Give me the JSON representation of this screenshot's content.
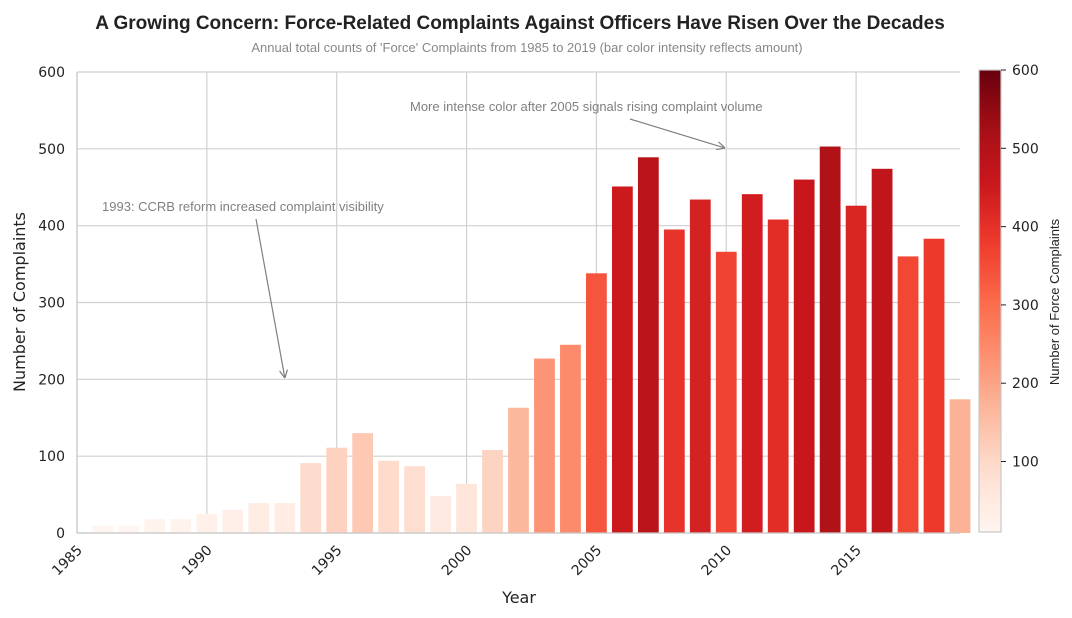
{
  "chart_data": {
    "type": "bar",
    "title": "A Growing Concern: Force-Related Complaints Against Officers Have Risen Over the Decades",
    "subtitle": "Annual total counts of 'Force' Complaints from 1985 to 2019 (bar color intensity reflects amount)",
    "xlabel": "Year",
    "ylabel": "Number of Complaints",
    "ylim": [
      0,
      600
    ],
    "xlim": [
      1985,
      2019
    ],
    "yticks": [
      "0",
      "100",
      "200",
      "300",
      "400",
      "500",
      "600"
    ],
    "xticks": [
      "1985",
      "1990",
      "1995",
      "2000",
      "2005",
      "2010",
      "2015"
    ],
    "grid": true,
    "colormap": "Reds",
    "x": [
      1986,
      1987,
      1988,
      1989,
      1990,
      1991,
      1992,
      1993,
      1994,
      1995,
      1996,
      1997,
      1998,
      1999,
      2000,
      2001,
      2002,
      2003,
      2004,
      2005,
      2006,
      2007,
      2008,
      2009,
      2010,
      2011,
      2012,
      2013,
      2014,
      2015,
      2016,
      2017,
      2018,
      2019
    ],
    "values": [
      10,
      10,
      18,
      18,
      25,
      30,
      39,
      39,
      91,
      111,
      130,
      94,
      87,
      48,
      64,
      108,
      163,
      227,
      245,
      338,
      451,
      489,
      395,
      434,
      366,
      441,
      408,
      460,
      503,
      426,
      474,
      360,
      383,
      174
    ],
    "annotations": [
      {
        "text": "1993: CCRB reform increased complaint visibility",
        "x": 1993,
        "y": 200
      },
      {
        "text": "More intense color after 2005 signals rising complaint volume",
        "x": 2010,
        "y": 500
      }
    ],
    "colorbar": {
      "label": "Number of Force Complaints",
      "range": [
        10,
        600
      ],
      "ticks": [
        "100",
        "200",
        "300",
        "400",
        "500",
        "600"
      ]
    }
  }
}
